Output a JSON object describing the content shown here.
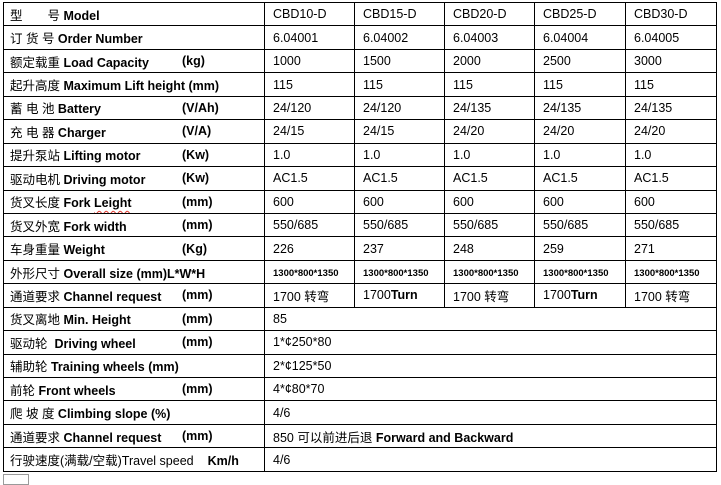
{
  "colors": {
    "table_border": "#000000",
    "spellcheck_squiggle": "#e03a2f",
    "fragment_border": "#9a9a9a"
  },
  "table": {
    "rows": [
      {
        "name": "model",
        "label": [
          {
            "t": "型　　号 "
          },
          {
            "t": "Model",
            "b": true
          }
        ],
        "values": [
          "CBD10-D",
          "CBD15-D",
          "CBD20-D",
          "CBD25-D",
          "CBD30-D"
        ]
      },
      {
        "name": "order-number",
        "label": [
          {
            "t": "订 货 号 "
          },
          {
            "t": "Order Number",
            "b": true
          }
        ],
        "values": [
          "6.04001",
          "6.04002",
          "6.04003",
          "6.04004",
          "6.04005"
        ]
      },
      {
        "name": "load-capacity",
        "label": [
          {
            "t": "额定载重 "
          },
          {
            "t": "Load Capacity",
            "b": true
          },
          {
            "t": "(kg)",
            "b": true,
            "tab": true
          }
        ],
        "values": [
          "1000",
          "1500",
          "2000",
          "2500",
          "3000"
        ]
      },
      {
        "name": "max-lift-height",
        "label": [
          {
            "t": "起升高度 "
          },
          {
            "t": "Maximum Lift height (mm)",
            "b": true
          }
        ],
        "values": [
          "115",
          "115",
          "115",
          "115",
          "115"
        ]
      },
      {
        "name": "battery",
        "label": [
          {
            "t": "蓄 电 池 "
          },
          {
            "t": "Battery",
            "b": true
          },
          {
            "t": "(V/Ah)",
            "b": true,
            "tab": true
          }
        ],
        "values": [
          "24/120",
          "24/120",
          "24/135",
          "24/135",
          "24/135"
        ]
      },
      {
        "name": "charger",
        "label": [
          {
            "t": "充 电 器 "
          },
          {
            "t": "Charger",
            "b": true
          },
          {
            "t": "(V/A)",
            "b": true,
            "tab": true
          }
        ],
        "values": [
          "24/15",
          "24/15",
          "24/20",
          "24/20",
          "24/20"
        ]
      },
      {
        "name": "lifting-motor",
        "label": [
          {
            "t": "提升泵站 "
          },
          {
            "t": "Lifting motor",
            "b": true
          },
          {
            "t": "(Kw)",
            "b": true,
            "tab": true
          }
        ],
        "values": [
          "1.0",
          "1.0",
          "1.0",
          "1.0",
          "1.0"
        ]
      },
      {
        "name": "driving-motor",
        "label": [
          {
            "t": "驱动电机 "
          },
          {
            "t": "Driving motor",
            "b": true
          },
          {
            "t": "(Kw)",
            "b": true,
            "tab": true
          }
        ],
        "values": [
          "AC1.5",
          "AC1.5",
          "AC1.5",
          "AC1.5",
          "AC1.5"
        ]
      },
      {
        "name": "fork-length",
        "label": [
          {
            "t": "货叉长度 "
          },
          {
            "t": "Fork ",
            "b": true
          },
          {
            "t": "Leight",
            "b": true,
            "sq": true
          },
          {
            "t": "(mm)",
            "b": true,
            "tab": true
          }
        ],
        "values": [
          "600",
          "600",
          "600",
          "600",
          "600"
        ]
      },
      {
        "name": "fork-width",
        "label": [
          {
            "t": "货叉外宽 "
          },
          {
            "t": "Fork width",
            "b": true
          },
          {
            "t": "(mm)",
            "b": true,
            "tab": true
          }
        ],
        "values": [
          "550/685",
          "550/685",
          "550/685",
          "550/685",
          "550/685"
        ]
      },
      {
        "name": "weight",
        "label": [
          {
            "t": "车身重量 "
          },
          {
            "t": "Weight",
            "b": true
          },
          {
            "t": "(Kg)",
            "b": true,
            "tab": true
          }
        ],
        "values": [
          "226",
          "237",
          "248",
          "259",
          "271"
        ]
      },
      {
        "name": "overall-size",
        "label": [
          {
            "t": "外形尺寸 "
          },
          {
            "t": "Overall size (mm)L*W*H",
            "b": true
          }
        ],
        "values": [
          [
            {
              "t": "1300*800*1350",
              "b": true,
              "small": true
            }
          ],
          [
            {
              "t": "1300*800*1350",
              "b": true,
              "small": true
            }
          ],
          [
            {
              "t": "1300*800*1350",
              "b": true,
              "small": true
            }
          ],
          [
            {
              "t": "1300*800*1350",
              "b": true,
              "small": true
            }
          ],
          [
            {
              "t": "1300*800*1350",
              "b": true,
              "small": true
            }
          ]
        ]
      },
      {
        "name": "channel-request-turn",
        "label": [
          {
            "t": "通道要求 "
          },
          {
            "t": "Channel request",
            "b": true
          },
          {
            "t": "(mm)",
            "b": true,
            "tab": true
          }
        ],
        "values": [
          [
            {
              "t": "1700 转弯"
            }
          ],
          [
            {
              "t": "1700"
            },
            {
              "t": "Turn",
              "b": true
            }
          ],
          [
            {
              "t": "1700 转弯"
            }
          ],
          [
            {
              "t": "1700"
            },
            {
              "t": "Turn",
              "b": true
            }
          ],
          [
            {
              "t": "1700 转弯"
            }
          ]
        ]
      },
      {
        "name": "min-height",
        "span": true,
        "label": [
          {
            "t": "货叉离地 "
          },
          {
            "t": "Min. Height",
            "b": true
          },
          {
            "t": "(mm)",
            "b": true,
            "tab": true
          }
        ],
        "value": "85"
      },
      {
        "name": "driving-wheel",
        "span": true,
        "label": [
          {
            "t": "驱动轮  "
          },
          {
            "t": "Driving wheel",
            "b": true
          },
          {
            "t": "(mm)",
            "b": true,
            "tab": true
          }
        ],
        "value": "1*¢250*80"
      },
      {
        "name": "training-wheels",
        "span": true,
        "label": [
          {
            "t": "辅助轮 "
          },
          {
            "t": "Training wheels (mm)",
            "b": true
          }
        ],
        "value": "2*¢125*50"
      },
      {
        "name": "front-wheels",
        "span": true,
        "label": [
          {
            "t": "前轮 "
          },
          {
            "t": "Front wheels",
            "b": true
          },
          {
            "t": "(mm)",
            "b": true,
            "tab": true
          }
        ],
        "value": "4*¢80*70"
      },
      {
        "name": "climbing-slope",
        "span": true,
        "label": [
          {
            "t": "爬 坡 度 "
          },
          {
            "t": "Climbing slope (%)",
            "b": true
          }
        ],
        "value": "4/6"
      },
      {
        "name": "channel-request-length",
        "span": true,
        "label": [
          {
            "t": "通道要求 "
          },
          {
            "t": "Channel request",
            "b": true
          },
          {
            "t": "(mm)",
            "b": true,
            "tab": true
          }
        ],
        "value": [
          {
            "t": "850 可以前进后退 "
          },
          {
            "t": "Forward and Backward",
            "b": true
          }
        ]
      },
      {
        "name": "travel-speed",
        "span": true,
        "label": [
          {
            "t": "行驶速度(满载/空载)Travel speed"
          },
          {
            "t": "Km/h",
            "b": true,
            "gap": true
          }
        ],
        "value": "4/6"
      }
    ]
  }
}
